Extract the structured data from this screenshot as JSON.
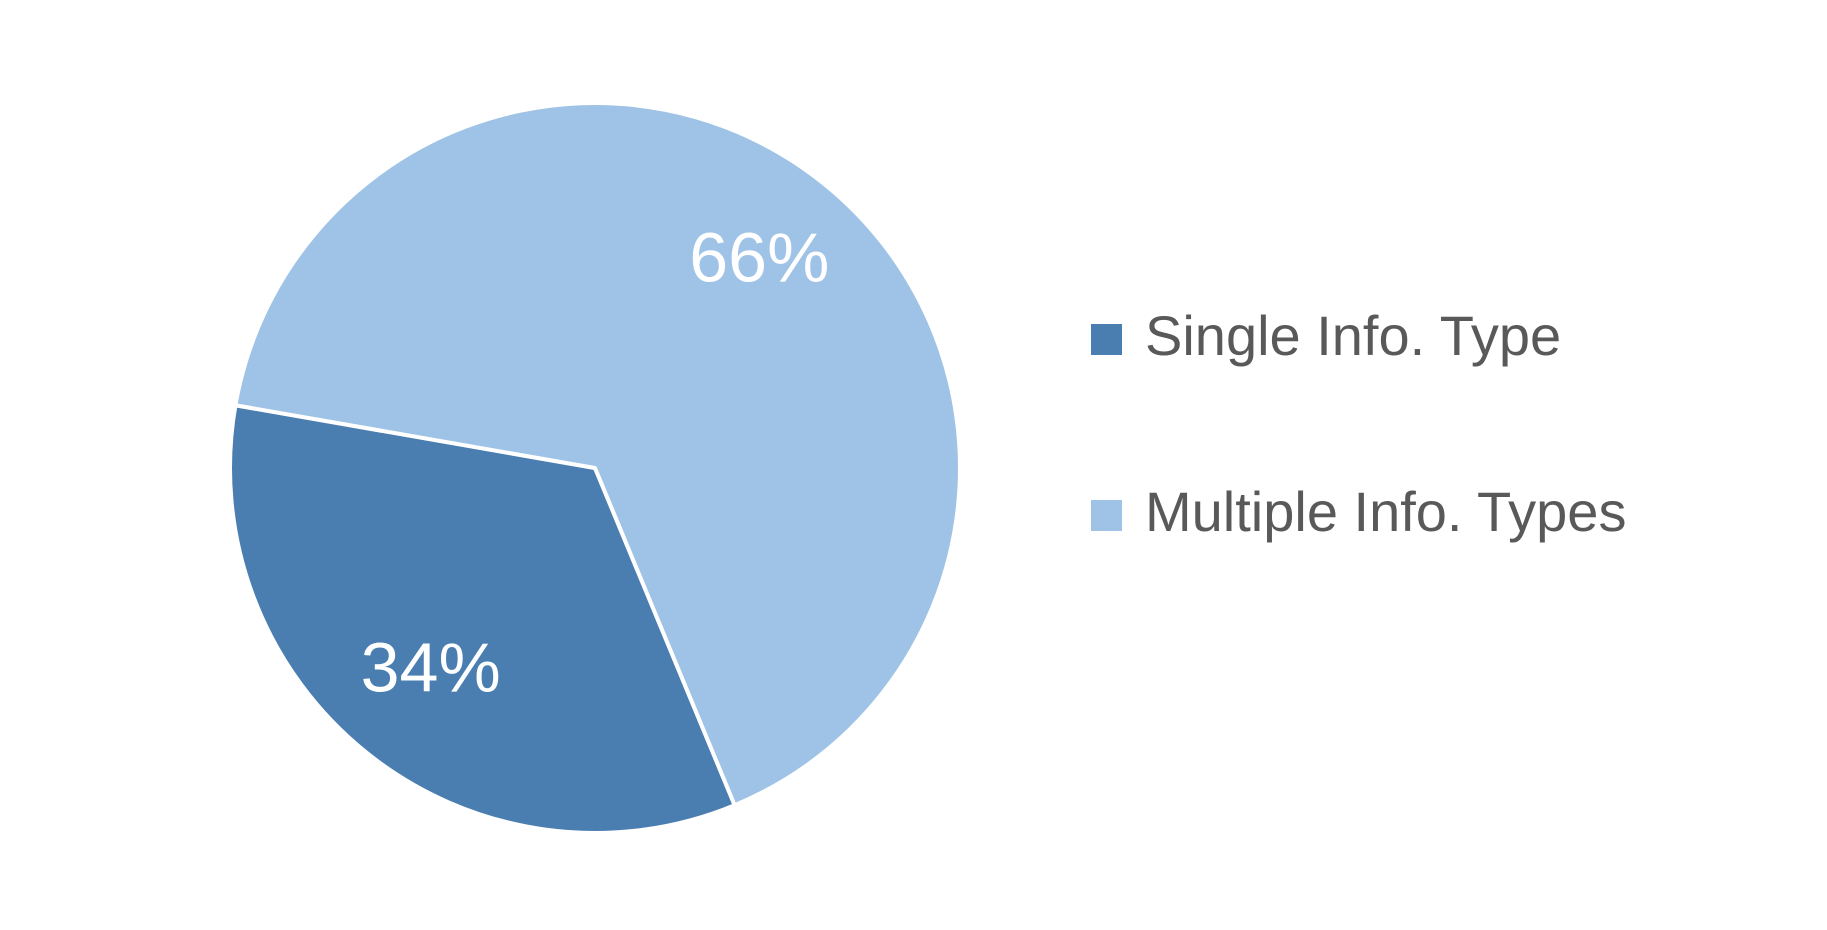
{
  "chart_data": {
    "type": "pie",
    "categories": [
      "Single Info. Type",
      "Multiple Info. Types"
    ],
    "values": [
      34,
      66
    ],
    "value_labels": [
      "34%",
      "66%"
    ],
    "colors": [
      "#4a7eb0",
      "#9fc3e6"
    ],
    "legend": "right"
  }
}
